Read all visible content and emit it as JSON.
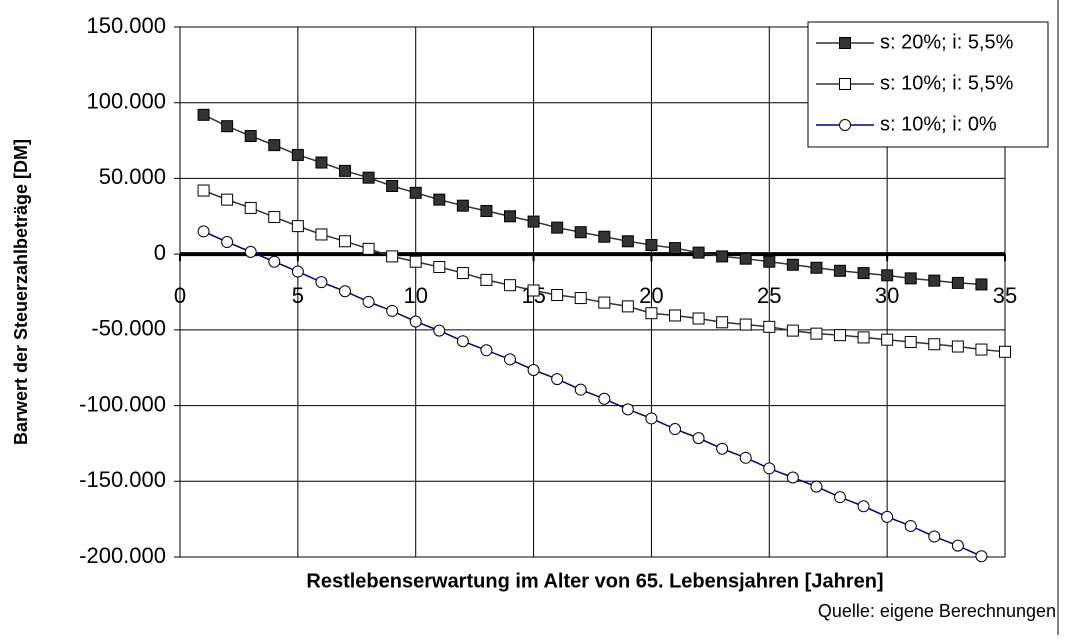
{
  "chart_data": {
    "type": "line",
    "x_label": "Restlebenserwartung im Alter von 65. Lebensjahren [Jahren]",
    "y_label": "Barwert der Steuerzahlbeträge [DM]",
    "source": "Quelle: eigene Berechnungen",
    "xlim": [
      0,
      35
    ],
    "xticks": [
      0,
      5,
      10,
      15,
      20,
      25,
      30,
      35
    ],
    "ylim": [
      -200000,
      150000
    ],
    "yticks": [
      {
        "value": -200000,
        "label": "-200.000"
      },
      {
        "value": -150000,
        "label": "-150.000"
      },
      {
        "value": -100000,
        "label": "-100.000"
      },
      {
        "value": -50000,
        "label": "-50.000"
      },
      0,
      {
        "value": 50000,
        "label": "50.000"
      },
      {
        "value": 100000,
        "label": "100.000"
      },
      {
        "value": 150000,
        "label": "150.000"
      }
    ],
    "grid": true,
    "legend": "upper right",
    "series": [
      {
        "name": "s: 20%; i: 5,5%",
        "color": "#333333",
        "marker_fill": "#333333",
        "marker": "square",
        "x": [
          1,
          2,
          3,
          4,
          5,
          6,
          7,
          8,
          9,
          10,
          11,
          12,
          13,
          14,
          15,
          16,
          17,
          18,
          19,
          20,
          21,
          22,
          23,
          24,
          25,
          26,
          27,
          28,
          29,
          30,
          31,
          32,
          33,
          34
        ],
        "values": [
          92000,
          84500,
          78000,
          72000,
          65500,
          60500,
          55000,
          50500,
          45000,
          40500,
          36000,
          32000,
          28500,
          25000,
          21500,
          17500,
          14500,
          11500,
          8500,
          6000,
          4000,
          1000,
          -1500,
          -3000,
          -5000,
          -7000,
          -9000,
          -11000,
          -12500,
          -14000,
          -16000,
          -17500,
          -19000,
          -20000
        ]
      },
      {
        "name": "s: 10%; i: 5,5%",
        "color": "#333333",
        "marker_fill": "#ffffff",
        "marker": "square",
        "x": [
          1,
          2,
          3,
          4,
          5,
          6,
          7,
          8,
          9,
          10,
          11,
          12,
          13,
          14,
          15,
          16,
          17,
          18,
          19,
          20,
          21,
          22,
          23,
          24,
          25,
          26,
          27,
          28,
          29,
          30,
          31,
          32,
          33,
          34,
          35
        ],
        "values": [
          42000,
          36000,
          30500,
          24500,
          18500,
          13000,
          8500,
          3500,
          -1500,
          -5000,
          -8500,
          -12500,
          -17000,
          -20500,
          -24000,
          -27000,
          -29000,
          -32000,
          -34500,
          -39000,
          -40500,
          -42500,
          -45000,
          -46500,
          -48000,
          -50500,
          -52500,
          -53500,
          -55000,
          -56500,
          -58000,
          -59500,
          -61000,
          -63000,
          -64500
        ]
      },
      {
        "name": "s: 10%; i: 0%",
        "color": "#000080",
        "marker_fill": "#ffffff",
        "marker": "circle",
        "x": [
          1,
          2,
          3,
          4,
          5,
          6,
          7,
          8,
          9,
          10,
          11,
          12,
          13,
          14,
          15,
          16,
          17,
          18,
          19,
          20,
          21,
          22,
          23,
          24,
          25,
          26,
          27,
          28,
          29,
          30,
          31,
          32,
          33,
          34
        ],
        "values": [
          15000,
          8000,
          1500,
          -5000,
          -11500,
          -18500,
          -24500,
          -31500,
          -37500,
          -44500,
          -50500,
          -57500,
          -63500,
          -69500,
          -76500,
          -82500,
          -89500,
          -95500,
          -102500,
          -108500,
          -115500,
          -121500,
          -128500,
          -134500,
          -141500,
          -147500,
          -153500,
          -160500,
          -166500,
          -173500,
          -179500,
          -186500,
          -192500,
          -199500
        ]
      }
    ]
  }
}
